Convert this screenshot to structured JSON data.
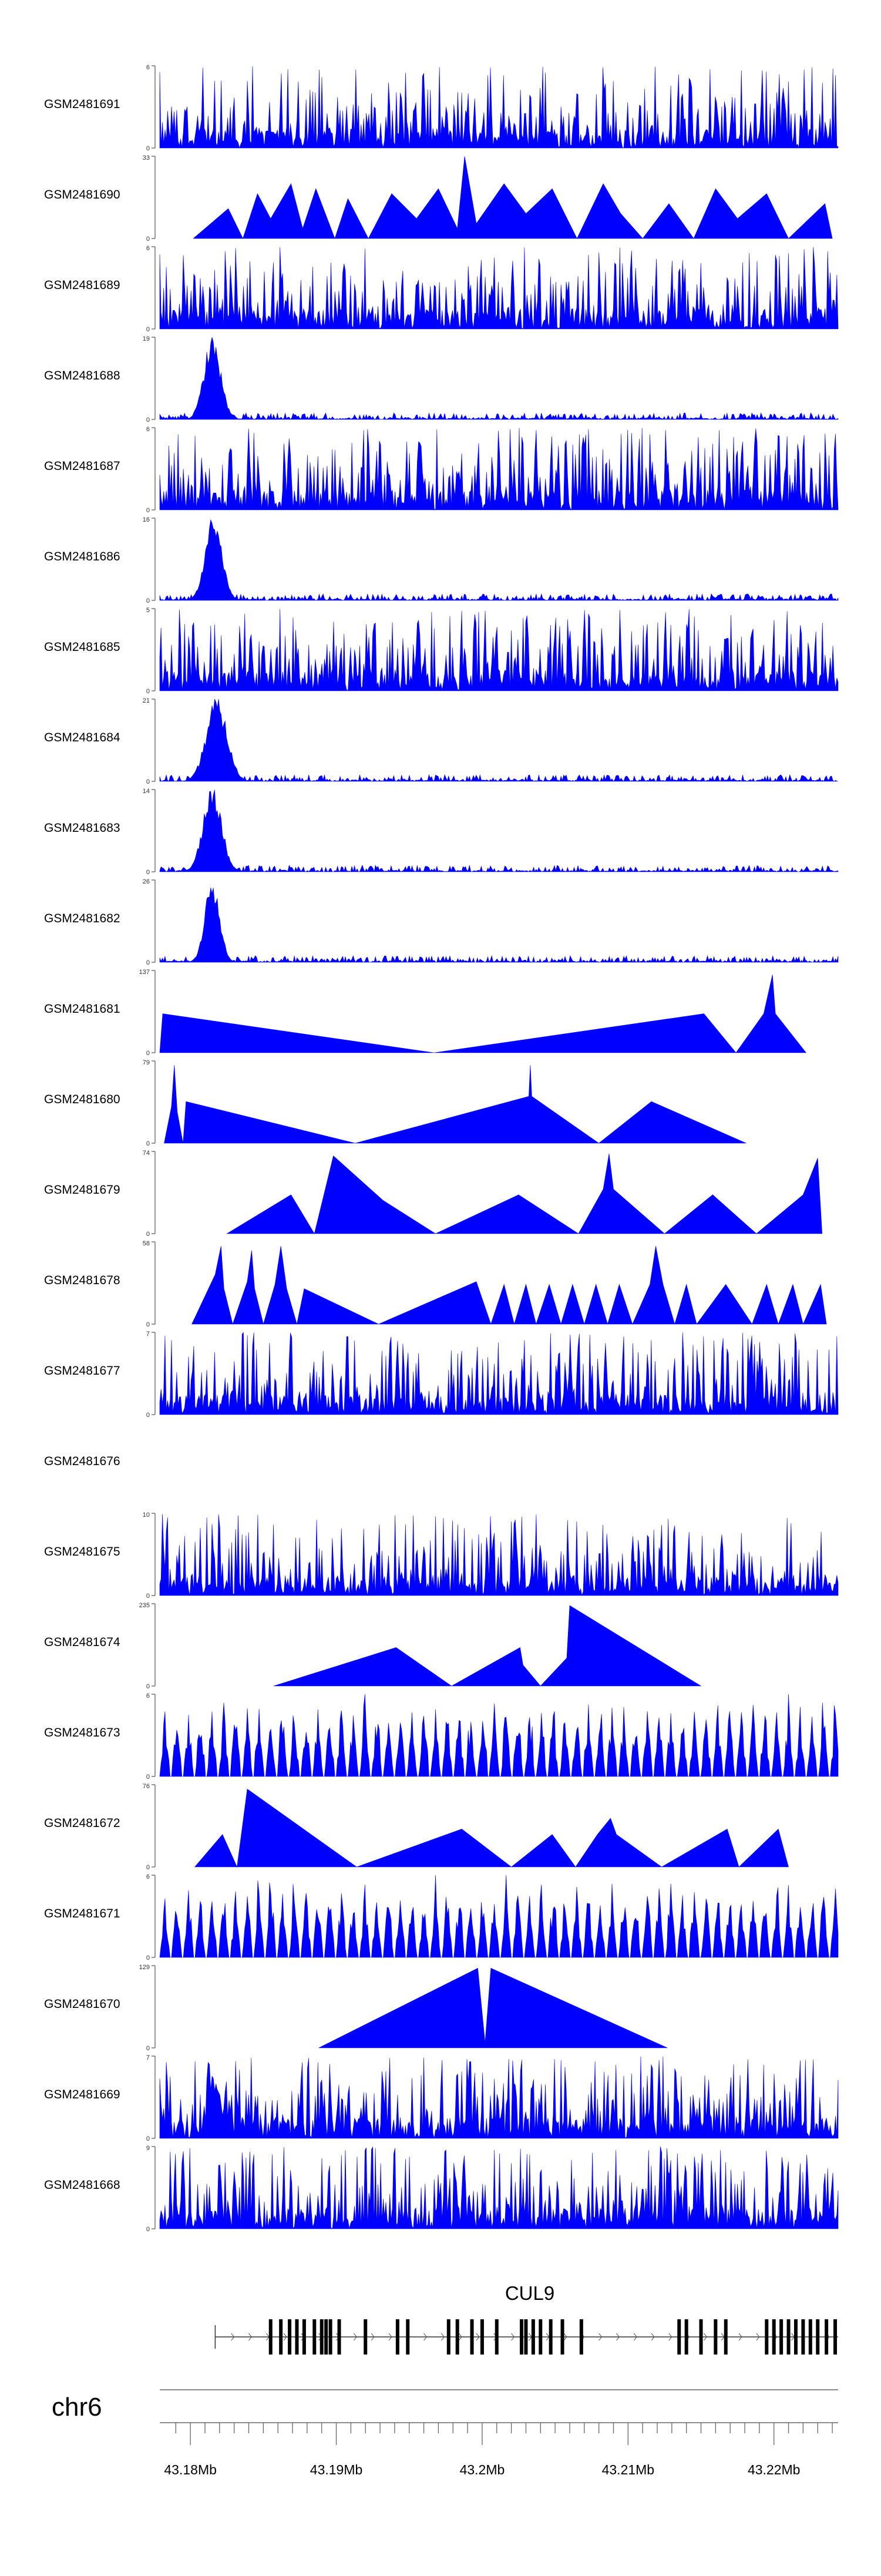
{
  "chart_data": {
    "type": "area",
    "chromosome": "chr6",
    "gene": {
      "name": "CUL9",
      "exons_mb": [
        43.1855,
        43.1862,
        43.1868,
        43.1873,
        43.1878,
        43.1885,
        43.189,
        43.1893,
        43.1896,
        43.1902,
        43.192,
        43.1942,
        43.1949,
        43.1977,
        43.1983,
        43.1993,
        43.2,
        43.201,
        43.2027,
        43.203,
        43.2035,
        43.204,
        43.2047,
        43.2055,
        43.2068,
        43.2135,
        43.214,
        43.215,
        43.216,
        43.2167,
        43.2195,
        43.22,
        43.2205,
        43.221,
        43.2215,
        43.222,
        43.2225,
        43.223,
        43.2236,
        43.2242
      ]
    },
    "xaxis": {
      "domain": [
        43.1779,
        43.2244
      ],
      "ticks": [
        "43.18Mb",
        "43.19Mb",
        "43.2Mb",
        "43.21Mb",
        "43.22Mb"
      ],
      "tick_values": [
        43.18,
        43.19,
        43.2,
        43.21,
        43.22
      ]
    },
    "tracks": [
      {
        "name": "GSM2481691",
        "ymax": 6,
        "ymin": "0",
        "pattern": "dense",
        "seed": 11,
        "peaks": []
      },
      {
        "name": "GSM2481690",
        "ymax": 33,
        "ymin": "0",
        "pattern": "tri",
        "seed": 12,
        "points": [
          [
            43.1802,
            0
          ],
          [
            43.1826,
            12
          ],
          [
            43.1836,
            0
          ],
          [
            43.1846,
            18
          ],
          [
            43.1855,
            8
          ],
          [
            43.1869,
            22
          ],
          [
            43.1877,
            4
          ],
          [
            43.1886,
            20
          ],
          [
            43.1899,
            0
          ],
          [
            43.1908,
            16
          ],
          [
            43.1922,
            0
          ],
          [
            43.1938,
            18
          ],
          [
            43.1955,
            8
          ],
          [
            43.197,
            20
          ],
          [
            43.1983,
            4
          ],
          [
            43.1988,
            33
          ],
          [
            43.1996,
            6
          ],
          [
            43.2015,
            22
          ],
          [
            43.203,
            10
          ],
          [
            43.2048,
            20
          ],
          [
            43.2065,
            0
          ],
          [
            43.2083,
            22
          ],
          [
            43.2095,
            10
          ],
          [
            43.211,
            0
          ],
          [
            43.2128,
            14
          ],
          [
            43.2145,
            0
          ],
          [
            43.216,
            20
          ],
          [
            43.2175,
            8
          ],
          [
            43.2195,
            18
          ],
          [
            43.221,
            0
          ],
          [
            43.2235,
            14
          ],
          [
            43.224,
            0
          ]
        ]
      },
      {
        "name": "GSM2481689",
        "ymax": 6,
        "ymin": "0",
        "pattern": "dense",
        "seed": 13,
        "peaks": []
      },
      {
        "name": "GSM2481688",
        "ymax": 19,
        "ymin": "0",
        "pattern": "peak",
        "seed": 14,
        "peaks": [
          [
            43.1815,
            19,
            0.0008
          ]
        ]
      },
      {
        "name": "GSM2481687",
        "ymax": 6,
        "ymin": "0",
        "pattern": "dense",
        "seed": 15,
        "peaks": []
      },
      {
        "name": "GSM2481686",
        "ymax": 16,
        "ymin": "0",
        "pattern": "peak",
        "seed": 16,
        "peaks": [
          [
            43.1816,
            16,
            0.0008
          ]
        ]
      },
      {
        "name": "GSM2481685",
        "ymax": 5,
        "ymin": "0",
        "pattern": "dense",
        "seed": 17,
        "peaks": []
      },
      {
        "name": "GSM2481684",
        "ymax": 21,
        "ymin": "0",
        "pattern": "peak",
        "seed": 18,
        "peaks": [
          [
            43.1818,
            21,
            0.001
          ]
        ]
      },
      {
        "name": "GSM2481683",
        "ymax": 14,
        "ymin": "0",
        "pattern": "peak",
        "seed": 19,
        "peaks": [
          [
            43.1815,
            14,
            0.0009
          ]
        ]
      },
      {
        "name": "GSM2481682",
        "ymax": 26,
        "ymin": "0",
        "pattern": "peak",
        "seed": 20,
        "peaks": [
          [
            43.1815,
            26,
            0.0007
          ]
        ]
      },
      {
        "name": "GSM2481681",
        "ymax": 137,
        "ymin": "0",
        "pattern": "tri",
        "seed": 21,
        "points": [
          [
            43.1779,
            0
          ],
          [
            43.1781,
            65
          ],
          [
            43.1967,
            0
          ],
          [
            43.2152,
            65
          ],
          [
            43.2174,
            0
          ],
          [
            43.2193,
            65
          ],
          [
            43.2199,
            130
          ],
          [
            43.2201,
            65
          ],
          [
            43.2222,
            0
          ]
        ]
      },
      {
        "name": "GSM2481680",
        "ymax": 79,
        "ymin": "0",
        "pattern": "tri",
        "seed": 22,
        "points": [
          [
            43.1782,
            0
          ],
          [
            43.1787,
            35
          ],
          [
            43.1789,
            75
          ],
          [
            43.1791,
            30
          ],
          [
            43.1795,
            0
          ],
          [
            43.1797,
            40
          ],
          [
            43.1913,
            0
          ],
          [
            43.2032,
            45
          ],
          [
            43.2033,
            75
          ],
          [
            43.2034,
            45
          ],
          [
            43.208,
            0
          ],
          [
            43.2116,
            40
          ],
          [
            43.2181,
            0
          ]
        ]
      },
      {
        "name": "GSM2481679",
        "ymax": 74,
        "ymin": "0",
        "pattern": "tri",
        "seed": 23,
        "points": [
          [
            43.1825,
            0
          ],
          [
            43.1869,
            35
          ],
          [
            43.1885,
            0
          ],
          [
            43.1898,
            70
          ],
          [
            43.1932,
            30
          ],
          [
            43.1968,
            0
          ],
          [
            43.2025,
            35
          ],
          [
            43.2066,
            0
          ],
          [
            43.2083,
            40
          ],
          [
            43.2087,
            72
          ],
          [
            43.209,
            40
          ],
          [
            43.2125,
            0
          ],
          [
            43.2158,
            35
          ],
          [
            43.2188,
            0
          ],
          [
            43.222,
            35
          ],
          [
            43.223,
            68
          ],
          [
            43.2233,
            0
          ]
        ]
      },
      {
        "name": "GSM2481678",
        "ymax": 58,
        "ymin": "0",
        "pattern": "tri",
        "seed": 24,
        "points": [
          [
            43.1801,
            0
          ],
          [
            43.1817,
            35
          ],
          [
            43.1821,
            55
          ],
          [
            43.1823,
            25
          ],
          [
            43.1829,
            0
          ],
          [
            43.1839,
            30
          ],
          [
            43.1842,
            52
          ],
          [
            43.1844,
            25
          ],
          [
            43.185,
            0
          ],
          [
            43.1858,
            28
          ],
          [
            43.1862,
            55
          ],
          [
            43.1866,
            25
          ],
          [
            43.1873,
            0
          ],
          [
            43.1878,
            25
          ],
          [
            43.1929,
            0
          ],
          [
            43.1996,
            30
          ],
          [
            43.2006,
            0
          ],
          [
            43.2015,
            28
          ],
          [
            43.2022,
            0
          ],
          [
            43.203,
            28
          ],
          [
            43.2037,
            0
          ],
          [
            43.2046,
            28
          ],
          [
            43.2054,
            0
          ],
          [
            43.2062,
            28
          ],
          [
            43.207,
            0
          ],
          [
            43.2078,
            28
          ],
          [
            43.2086,
            0
          ],
          [
            43.2094,
            28
          ],
          [
            43.2103,
            0
          ],
          [
            43.2115,
            28
          ],
          [
            43.2119,
            55
          ],
          [
            43.2124,
            28
          ],
          [
            43.2132,
            0
          ],
          [
            43.214,
            28
          ],
          [
            43.2147,
            0
          ],
          [
            43.2167,
            28
          ],
          [
            43.2185,
            0
          ],
          [
            43.2195,
            28
          ],
          [
            43.2203,
            0
          ],
          [
            43.2213,
            28
          ],
          [
            43.222,
            0
          ],
          [
            43.2232,
            28
          ],
          [
            43.2236,
            0
          ]
        ]
      },
      {
        "name": "GSM2481677",
        "ymax": 7,
        "ymin": "0",
        "pattern": "dense",
        "seed": 25,
        "peaks": [
          [
            43.1942,
            6.0,
            0.00015
          ]
        ]
      },
      {
        "name": "GSM2481676",
        "ymax": null,
        "ymin": "",
        "pattern": "empty",
        "seed": 26,
        "peaks": []
      },
      {
        "name": "GSM2481675",
        "ymax": 10,
        "ymin": "0",
        "pattern": "dense",
        "seed": 27,
        "peaks": []
      },
      {
        "name": "GSM2481674",
        "ymax": 235,
        "ymin": "0",
        "pattern": "tri",
        "seed": 28,
        "points": [
          [
            43.1857,
            0
          ],
          [
            43.1941,
            110
          ],
          [
            43.1979,
            0
          ],
          [
            43.2026,
            110
          ],
          [
            43.2028,
            60
          ],
          [
            43.204,
            0
          ],
          [
            43.2058,
            80
          ],
          [
            43.206,
            230
          ],
          [
            43.215,
            0
          ]
        ]
      },
      {
        "name": "GSM2481673",
        "ymax": 6,
        "ymin": "0",
        "pattern": "teeth",
        "seed": 29,
        "peaks": []
      },
      {
        "name": "GSM2481672",
        "ymax": 76,
        "ymin": "0",
        "pattern": "tri",
        "seed": 30,
        "points": [
          [
            43.1803,
            0
          ],
          [
            43.1822,
            30
          ],
          [
            43.1832,
            0
          ],
          [
            43.1839,
            72
          ],
          [
            43.1914,
            0
          ],
          [
            43.1986,
            35
          ],
          [
            43.202,
            0
          ],
          [
            43.2048,
            30
          ],
          [
            43.2064,
            0
          ],
          [
            43.2079,
            30
          ],
          [
            43.2088,
            45
          ],
          [
            43.2092,
            30
          ],
          [
            43.2123,
            0
          ],
          [
            43.2168,
            35
          ],
          [
            43.2176,
            0
          ],
          [
            43.2203,
            35
          ],
          [
            43.221,
            0
          ]
        ]
      },
      {
        "name": "GSM2481671",
        "ymax": 6,
        "ymin": "0",
        "pattern": "teeth",
        "seed": 31,
        "peaks": []
      },
      {
        "name": "GSM2481670",
        "ymax": 129,
        "ymin": "0",
        "pattern": "tri",
        "seed": 32,
        "points": [
          [
            43.1888,
            0
          ],
          [
            43.1997,
            125
          ],
          [
            43.2002,
            8
          ],
          [
            43.2006,
            125
          ],
          [
            43.2127,
            0
          ]
        ]
      },
      {
        "name": "GSM2481669",
        "ymax": 7,
        "ymin": "0",
        "pattern": "dense",
        "seed": 33,
        "peaks": [
          [
            43.1817,
            5.2,
            0.0006
          ]
        ]
      },
      {
        "name": "GSM2481668",
        "ymax": 9,
        "ymin": "0",
        "pattern": "dense",
        "seed": 34,
        "peaks": []
      }
    ]
  }
}
